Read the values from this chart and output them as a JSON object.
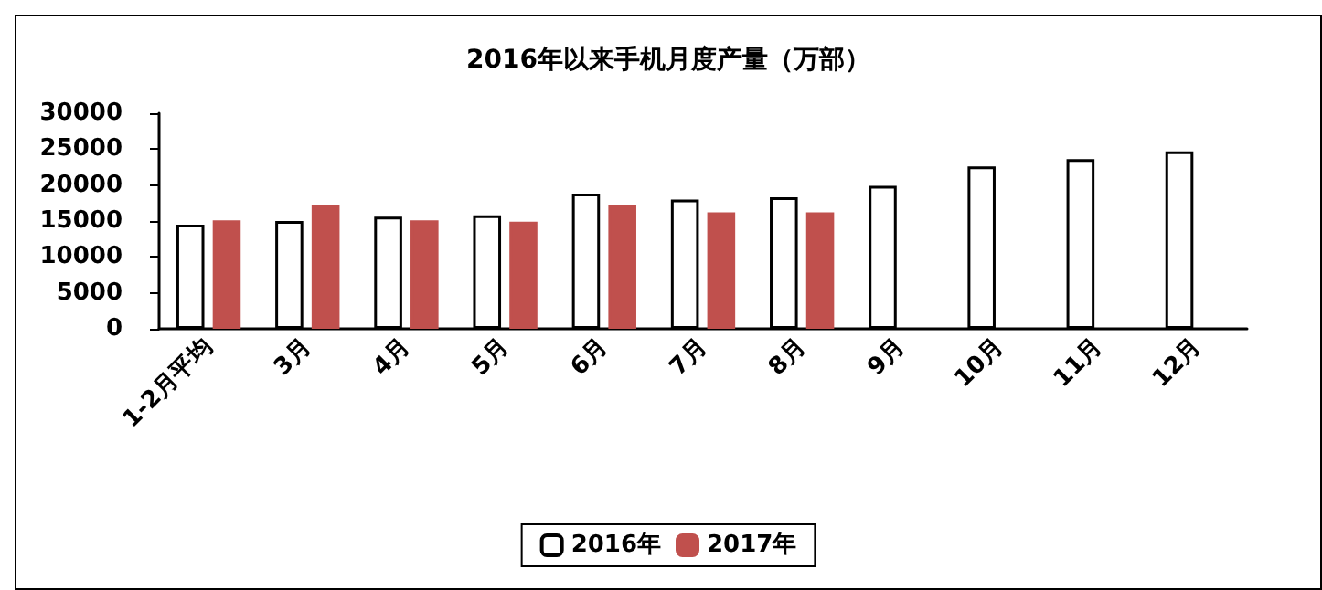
{
  "chart_data": {
    "type": "bar",
    "title": "2016年以来手机月度产量（万部）",
    "categories": [
      "1-2月平均",
      "3月",
      "4月",
      "5月",
      "6月",
      "7月",
      "8月",
      "9月",
      "10月",
      "11月",
      "12月"
    ],
    "series": [
      {
        "name": "2016年",
        "color": "#ffffff",
        "values": [
          14500,
          15000,
          15600,
          15800,
          18800,
          18000,
          18300,
          19900,
          22600,
          23600,
          24700
        ]
      },
      {
        "name": "2017年",
        "color": "#c0504d",
        "values": [
          15100,
          17300,
          15100,
          14900,
          17300,
          16200,
          16200,
          null,
          null,
          null,
          null
        ]
      }
    ],
    "ylim": [
      0,
      30000
    ],
    "yticks": [
      0,
      5000,
      10000,
      15000,
      20000,
      25000,
      30000
    ],
    "grid": false,
    "legend": "bottom"
  }
}
